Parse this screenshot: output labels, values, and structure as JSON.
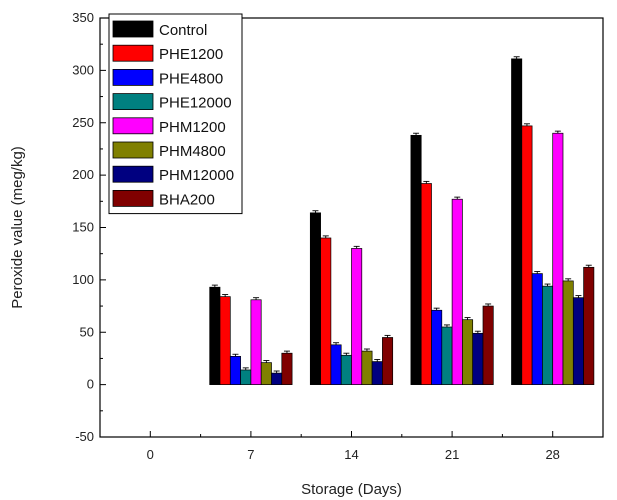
{
  "chart_data": {
    "type": "bar",
    "title": "",
    "xlabel": "Storage (Days)",
    "ylabel": "Peroxide value (meg/kg)",
    "categories": [
      "0",
      "7",
      "14",
      "21",
      "28"
    ],
    "ylim": [
      -50,
      350
    ],
    "yticks": [
      "-50",
      "0",
      "50",
      "100",
      "150",
      "200",
      "250",
      "300",
      "350"
    ],
    "legend_position": "top-left",
    "grid": false,
    "error_bars": true,
    "series": [
      {
        "name": "Control",
        "color": "#000000",
        "values": [
          0,
          93,
          164,
          238,
          311
        ]
      },
      {
        "name": "PHE1200",
        "color": "#ff0000",
        "values": [
          0,
          84,
          140,
          192,
          247
        ]
      },
      {
        "name": "PHE4800",
        "color": "#0000ff",
        "values": [
          0,
          27,
          38,
          71,
          106
        ]
      },
      {
        "name": "PHE12000",
        "color": "#008080",
        "values": [
          0,
          14,
          28,
          55,
          94
        ]
      },
      {
        "name": "PHM1200",
        "color": "#ff00ff",
        "values": [
          0,
          81,
          130,
          177,
          240
        ]
      },
      {
        "name": "PHM4800",
        "color": "#808000",
        "values": [
          0,
          21,
          32,
          62,
          99
        ]
      },
      {
        "name": "PHM12000",
        "color": "#000080",
        "values": [
          0,
          11,
          22,
          49,
          83
        ]
      },
      {
        "name": "BHA200",
        "color": "#800000",
        "values": [
          0,
          30,
          45,
          75,
          112
        ]
      }
    ]
  }
}
